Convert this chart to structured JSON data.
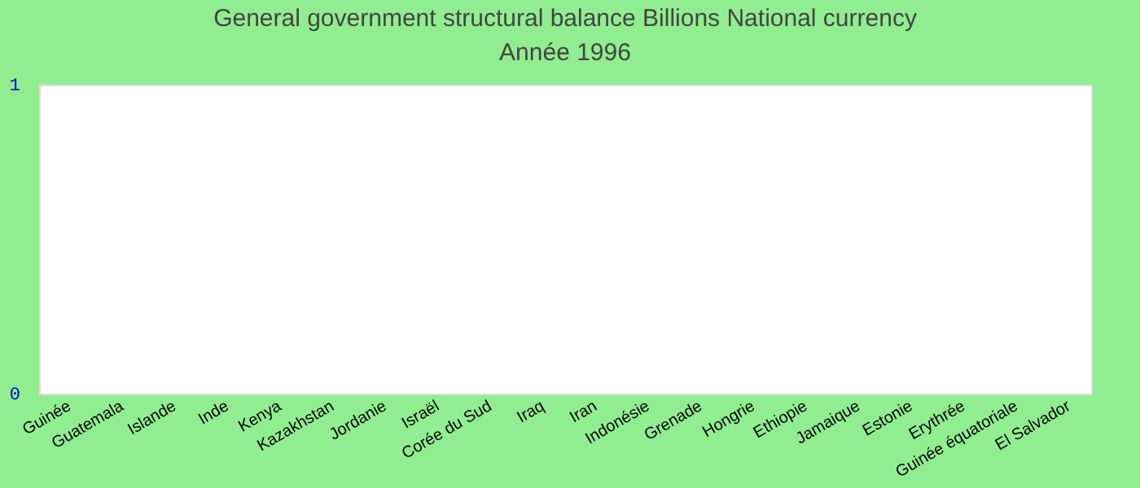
{
  "chart_data": {
    "type": "bar",
    "title": "General government structural balance Billions National currency",
    "subtitle": "Année 1996",
    "categories": [
      "Guinée",
      "Guatemala",
      "Islande",
      "Inde",
      "Kenya",
      "Kazakhstan",
      "Jordanie",
      "Israël",
      "Corée du Sud",
      "Iraq",
      "Iran",
      "Indonésie",
      "Grenade",
      "Hongrie",
      "Ethiopie",
      "Jamaique",
      "Estonie",
      "Erythrée",
      "Guinée équatoriale",
      "El Salvador"
    ],
    "values": [
      null,
      null,
      null,
      null,
      null,
      null,
      null,
      null,
      null,
      null,
      null,
      null,
      null,
      null,
      null,
      null,
      null,
      null,
      null,
      null
    ],
    "ylim": [
      0,
      1
    ],
    "yticks": [
      0,
      1
    ],
    "grid": false
  }
}
